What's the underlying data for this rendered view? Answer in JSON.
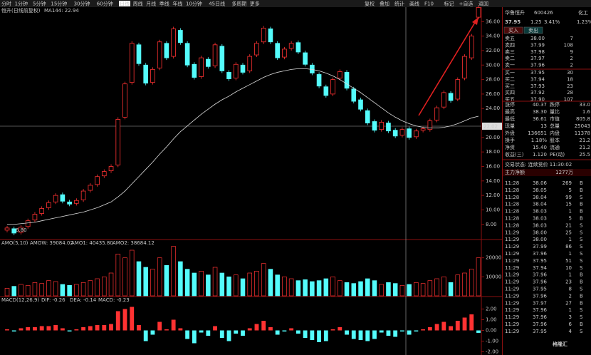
{
  "toolbar": {
    "tabs": [
      "分时",
      "1分钟",
      "5分钟",
      "15分钟",
      "30分钟",
      "60分钟",
      "日线",
      "周线",
      "月线",
      "季线",
      "年线",
      "10分钟",
      "45日线",
      "多周期",
      "更多"
    ],
    "tools": [
      "复权",
      "叠加",
      "统计",
      "画线",
      "F10",
      "标记",
      "+自选",
      "返回"
    ]
  },
  "price_panel": {
    "legend": "恒升(日线前复权)",
    "ma_label": "MA144: 22.94",
    "low_label": "6.80",
    "crosshair_label": "22.02",
    "ylim": [
      6.5,
      38
    ],
    "yticks": [
      {
        "value": 8,
        "label": "8.00"
      },
      {
        "value": 10,
        "label": "10.00"
      },
      {
        "value": 12,
        "label": "12.00"
      },
      {
        "value": 14,
        "label": "14.00"
      },
      {
        "value": 16,
        "label": "16.00"
      },
      {
        "value": 18,
        "label": "18.00"
      },
      {
        "value": 20,
        "label": "20.00"
      },
      {
        "value": 24,
        "label": "24.00"
      },
      {
        "value": 26,
        "label": "26.00"
      },
      {
        "value": 28,
        "label": "28.00"
      },
      {
        "value": 30,
        "label": "30.00"
      },
      {
        "value": 32,
        "label": "32.00"
      },
      {
        "value": 34,
        "label": "34.00"
      },
      {
        "value": 36,
        "label": "36.00"
      }
    ],
    "opens": [
      7.2,
      7.4,
      6.9,
      7.7,
      8.6,
      9.5,
      10.3,
      11.1,
      12.1,
      11.1,
      10.9,
      11.4,
      12.7,
      13.5,
      14.7,
      15.4,
      16.2,
      22.8,
      27.6,
      32.8,
      30.0,
      27.6,
      29.6,
      33.0,
      31.2,
      34.8,
      33.0,
      30.1,
      28.4,
      30.8,
      29.9,
      32.6,
      29.0,
      28.2,
      30.0,
      29.2,
      31.4,
      33.2,
      35.0,
      33.0,
      31.1,
      32.3,
      33.1,
      31.7,
      30.0,
      28.7,
      27.0,
      26.0,
      28.2,
      29.0,
      26.7,
      25.2,
      23.7,
      22.2,
      21.1,
      22.0,
      21.0,
      20.3,
      21.2,
      20.1,
      21.0,
      21.1,
      22.4,
      24.2,
      26.1,
      25.3,
      28.2,
      31.0,
      36.61
    ],
    "closes": [
      7.5,
      6.8,
      7.6,
      8.5,
      9.4,
      10.2,
      11.0,
      12.0,
      11.2,
      10.8,
      11.3,
      12.6,
      13.4,
      14.6,
      15.3,
      16.0,
      22.5,
      27.4,
      33.0,
      30.2,
      27.5,
      29.4,
      33.2,
      31.0,
      35.0,
      33.1,
      30.0,
      28.3,
      31.0,
      29.8,
      32.8,
      29.2,
      28.1,
      30.1,
      29.0,
      31.2,
      33.0,
      35.1,
      33.2,
      31.0,
      32.2,
      33.0,
      31.8,
      30.1,
      28.9,
      27.1,
      25.8,
      28.0,
      29.1,
      26.8,
      25.0,
      23.9,
      22.0,
      21.0,
      22.1,
      20.9,
      20.2,
      21.1,
      20.0,
      20.9,
      21.2,
      22.3,
      24.1,
      26.2,
      25.1,
      28.0,
      31.2,
      34.0,
      37.95
    ],
    "ma": [
      8.0,
      8.0,
      8.1,
      8.2,
      8.3,
      8.5,
      8.7,
      8.9,
      9.1,
      9.3,
      9.5,
      9.7,
      10.0,
      10.3,
      10.7,
      11.1,
      11.8,
      12.6,
      13.6,
      14.6,
      15.6,
      16.6,
      17.7,
      18.7,
      19.8,
      20.8,
      21.6,
      22.4,
      23.2,
      23.9,
      24.6,
      25.2,
      25.7,
      26.3,
      26.8,
      27.3,
      27.8,
      28.3,
      28.7,
      29.0,
      29.2,
      29.4,
      29.5,
      29.5,
      29.4,
      29.2,
      28.9,
      28.5,
      28.0,
      27.4,
      26.8,
      26.2,
      25.5,
      24.8,
      24.1,
      23.4,
      22.8,
      22.3,
      21.9,
      21.6,
      21.4,
      21.3,
      21.3,
      21.4,
      21.6,
      21.9,
      22.3,
      22.7,
      22.94
    ]
  },
  "volume_panel": {
    "legend": "AMO(5,10)",
    "items": [
      "AMOW: 39084.02",
      "AMO1: 40435.80",
      "AMO2: 38684.12"
    ],
    "ylim": [
      0,
      27000
    ],
    "yticks": [
      10000,
      20000
    ],
    "values": [
      4000,
      5000,
      6000,
      5500,
      7000,
      6500,
      8000,
      7500,
      6000,
      5500,
      6000,
      7000,
      8000,
      9000,
      10000,
      12000,
      22000,
      20000,
      24000,
      18000,
      15000,
      14000,
      20000,
      16000,
      26000,
      18000,
      14000,
      12000,
      13000,
      11000,
      15000,
      12000,
      10000,
      11000,
      9000,
      12000,
      13000,
      17000,
      14000,
      11000,
      10000,
      9000,
      8000,
      8500,
      7500,
      8000,
      9000,
      10000,
      8000,
      7000,
      6500,
      7500,
      9000,
      8000,
      6000,
      7000,
      6500,
      5500,
      6000,
      7000,
      6500,
      8000,
      9000,
      10000,
      7000,
      11000,
      12000,
      14000,
      20000
    ]
  },
  "macd_panel": {
    "legend": "MACD(12,26,9)",
    "items": [
      "DIF: -0.26",
      "DEA: -0.14",
      "MACD: -0.23"
    ],
    "ylim": [
      -2.3,
      2.9
    ],
    "yticks": [
      {
        "value": 2,
        "label": "2.00"
      },
      {
        "value": 1,
        "label": "1.00"
      },
      {
        "value": 0,
        "label": "0.00"
      },
      {
        "value": -1,
        "label": "-1.00"
      },
      {
        "value": -2,
        "label": "-2.00"
      }
    ],
    "values": [
      0.1,
      -0.1,
      0.2,
      0.3,
      0.3,
      0.4,
      0.4,
      0.5,
      0.2,
      -0.1,
      0.1,
      0.3,
      0.4,
      0.5,
      0.5,
      0.6,
      1.8,
      2.0,
      2.2,
      0.5,
      -1.0,
      -0.4,
      0.8,
      0.1,
      1.0,
      0.2,
      -0.8,
      -1.2,
      -0.2,
      -0.5,
      0.4,
      -0.7,
      -1.0,
      -0.3,
      -0.5,
      0.2,
      0.6,
      0.9,
      0.3,
      -0.4,
      -0.1,
      0.2,
      -0.3,
      -0.7,
      -0.9,
      -1.1,
      -1.0,
      0.1,
      0.3,
      -0.4,
      -0.8,
      -0.9,
      -1.0,
      -0.8,
      -0.2,
      -0.5,
      -0.6,
      -0.1,
      -0.4,
      -0.1,
      0.1,
      0.3,
      0.6,
      0.8,
      0.4,
      0.9,
      1.2,
      1.5,
      -0.23
    ]
  },
  "quote": {
    "name": "华鲁恒升",
    "code": "600426",
    "sector": "化工",
    "price": "37.95",
    "change": "1.25",
    "pct": "3.41%",
    "side_pct": "1.23%",
    "buttons": [
      "买入",
      "卖出"
    ],
    "asks": [
      [
        "卖五",
        "38.00",
        "7"
      ],
      [
        "卖四",
        "37.99",
        "108"
      ],
      [
        "卖三",
        "37.98",
        "9"
      ],
      [
        "卖二",
        "37.97",
        "2"
      ],
      [
        "卖一",
        "37.96",
        "2"
      ]
    ],
    "bids": [
      [
        "买一",
        "37.95",
        "30"
      ],
      [
        "买二",
        "37.94",
        "18"
      ],
      [
        "买三",
        "37.93",
        "23"
      ],
      [
        "买四",
        "37.92",
        "28"
      ],
      [
        "买五",
        "37.90",
        "107"
      ]
    ],
    "stats": [
      [
        "涨停",
        "40.37",
        "跌停",
        "33.0"
      ],
      [
        "最高",
        "38.30",
        "量比",
        "1.6"
      ],
      [
        "最低",
        "36.61",
        "市值",
        "805.8"
      ],
      [
        "现量",
        "13",
        "总量",
        "25043"
      ],
      [
        "外盘",
        "136651",
        "内盘",
        "11378"
      ],
      [
        "换手",
        "1.18%",
        "股本",
        "21.2"
      ],
      [
        "净资",
        "15.40",
        "流通",
        "21.2"
      ],
      [
        "收益(三)",
        "1.120",
        "PE(动)",
        "25.5"
      ]
    ],
    "status": "交易状态: 连续竞价 11:30:02",
    "net_label": "主力净额",
    "net_value": "1277万"
  },
  "trades": [
    [
      "11:28",
      "38.06",
      "269",
      "B"
    ],
    [
      "11:28",
      "38.05",
      "5",
      "B"
    ],
    [
      "11:28",
      "38.04",
      "99",
      "S"
    ],
    [
      "11:28",
      "38.04",
      "15",
      "B"
    ],
    [
      "11:28",
      "38.03",
      "1",
      "B"
    ],
    [
      "11:28",
      "38.03",
      "5",
      "B"
    ],
    [
      "11:28",
      "38.03",
      "21",
      "S"
    ],
    [
      "11:29",
      "38.00",
      "25",
      "S"
    ],
    [
      "11:29",
      "38.00",
      "1",
      "S"
    ],
    [
      "11:29",
      "37.99",
      "86",
      "S"
    ],
    [
      "11:29",
      "37.96",
      "1",
      "S"
    ],
    [
      "11:29",
      "37.95",
      "51",
      "S"
    ],
    [
      "11:29",
      "37.94",
      "10",
      "S"
    ],
    [
      "11:29",
      "37.96",
      "1",
      "B"
    ],
    [
      "11:29",
      "37.96",
      "23",
      "B"
    ],
    [
      "11:29",
      "37.95",
      "8",
      "S"
    ],
    [
      "11:29",
      "37.96",
      "2",
      "B"
    ],
    [
      "11:29",
      "37.97",
      "27",
      "B"
    ],
    [
      "11:29",
      "37.96",
      "1",
      "S"
    ],
    [
      "11:29",
      "37.96",
      "3",
      "S"
    ],
    [
      "11:29",
      "37.96",
      "6",
      "B"
    ],
    [
      "11:29",
      "37.95",
      "4",
      "S"
    ]
  ],
  "watermark": "格隆汇"
}
